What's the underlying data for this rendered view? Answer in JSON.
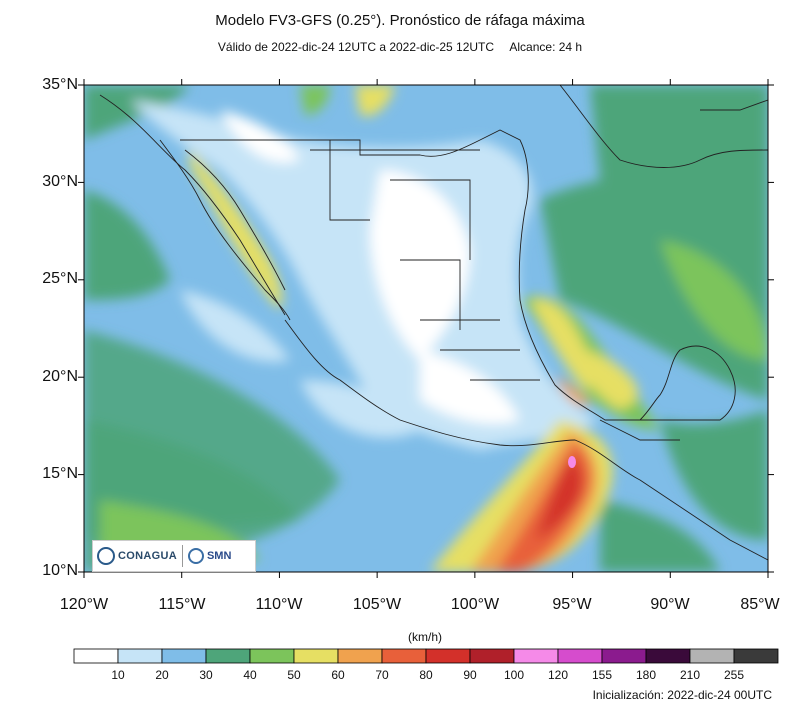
{
  "title": "Modelo FV3-GFS (0.25°). Pronóstico de ráfaga máxima",
  "validity": "Válido de 2022-dic-24 12UTC a 2022-dic-25 12UTC",
  "range": "Alcance: 24 h",
  "lat_labels": [
    "35°N",
    "30°N",
    "25°N",
    "20°N",
    "15°N",
    "10°N"
  ],
  "lon_labels": [
    "120°W",
    "115°W",
    "110°W",
    "105°W",
    "100°W",
    "95°W",
    "90°W",
    "85°W"
  ],
  "unit_label": "(km/h)",
  "legend": {
    "ticks": [
      "10",
      "20",
      "30",
      "40",
      "50",
      "60",
      "70",
      "80",
      "90",
      "100",
      "120",
      "155",
      "180",
      "210",
      "255"
    ],
    "colors": [
      "#ffffff",
      "#c6e4f7",
      "#7fbde8",
      "#4ea57a",
      "#7cc45b",
      "#e6df63",
      "#f0a24e",
      "#e8603a",
      "#d3302a",
      "#b0202a",
      "#f58ae8",
      "#d64ccd",
      "#8b1b8e",
      "#3a0a3a",
      "#b3b3b3",
      "#3a3a3a"
    ]
  },
  "init": "Inicialización: 2022-dic-24 00UTC",
  "logos": {
    "conagua": "CONAGUA",
    "smn": "SMN"
  }
}
